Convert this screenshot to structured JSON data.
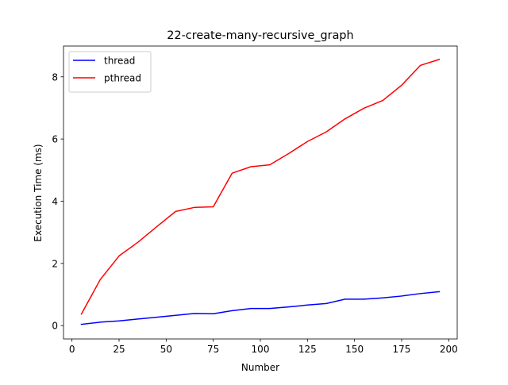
{
  "chart_data": {
    "type": "line",
    "title": "22-create-many-recursive_graph",
    "xlabel": "Number",
    "ylabel": "Execution Time (ms)",
    "xlim": [
      -4.5,
      204.5
    ],
    "ylim": [
      -0.43,
      8.99
    ],
    "xticks": [
      0,
      25,
      50,
      75,
      100,
      125,
      150,
      175,
      200
    ],
    "yticks": [
      0,
      2,
      4,
      6,
      8
    ],
    "grid": false,
    "legend_position": "upper-left",
    "x": [
      5,
      15,
      25,
      35,
      45,
      55,
      65,
      75,
      85,
      95,
      105,
      115,
      125,
      135,
      145,
      155,
      165,
      175,
      185,
      195
    ],
    "series": [
      {
        "name": "thread",
        "color": "#0000ff",
        "values": [
          0.04,
          0.11,
          0.15,
          0.21,
          0.27,
          0.33,
          0.39,
          0.38,
          0.48,
          0.55,
          0.55,
          0.6,
          0.66,
          0.71,
          0.85,
          0.85,
          0.89,
          0.95,
          1.03,
          1.09
        ]
      },
      {
        "name": "pthread",
        "color": "#ff0000",
        "values": [
          0.37,
          1.48,
          2.24,
          2.68,
          3.18,
          3.67,
          3.8,
          3.82,
          4.9,
          5.11,
          5.17,
          5.53,
          5.92,
          6.23,
          6.65,
          6.99,
          7.24,
          7.73,
          8.37,
          8.56
        ]
      }
    ]
  }
}
